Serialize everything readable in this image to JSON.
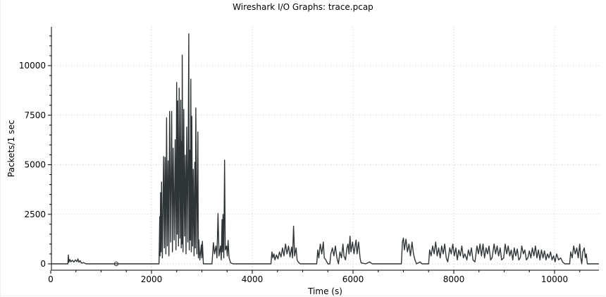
{
  "window_title": "Wireshark I/O Graphs: trace.pcap",
  "chart_data": {
    "type": "line",
    "title": "Wireshark I/O Graphs: trace.pcap",
    "xlabel": "Time (s)",
    "ylabel": "Packets/1 sec",
    "xlim": [
      0,
      10880
    ],
    "ylim": [
      -300,
      11950
    ],
    "xticks": [
      0,
      2000,
      4000,
      6000,
      8000,
      10000
    ],
    "yticks": [
      0,
      2500,
      5000,
      7500,
      10000
    ],
    "grid": true,
    "line_color": "#2f3537",
    "marker": {
      "x": 1300,
      "y": 0,
      "shape": "circle"
    },
    "points": [
      [
        0,
        0
      ],
      [
        340,
        0
      ],
      [
        350,
        450
      ],
      [
        360,
        80
      ],
      [
        380,
        220
      ],
      [
        400,
        100
      ],
      [
        430,
        180
      ],
      [
        460,
        90
      ],
      [
        490,
        200
      ],
      [
        520,
        110
      ],
      [
        540,
        250
      ],
      [
        560,
        80
      ],
      [
        580,
        160
      ],
      [
        610,
        40
      ],
      [
        650,
        60
      ],
      [
        700,
        0
      ],
      [
        2150,
        0
      ],
      [
        2163,
        2380
      ],
      [
        2170,
        400
      ],
      [
        2180,
        3590
      ],
      [
        2190,
        600
      ],
      [
        2200,
        4130
      ],
      [
        2215,
        300
      ],
      [
        2240,
        5410
      ],
      [
        2255,
        800
      ],
      [
        2270,
        5370
      ],
      [
        2285,
        500
      ],
      [
        2300,
        7370
      ],
      [
        2315,
        900
      ],
      [
        2330,
        5200
      ],
      [
        2345,
        400
      ],
      [
        2360,
        7690
      ],
      [
        2380,
        1100
      ],
      [
        2400,
        7690
      ],
      [
        2415,
        600
      ],
      [
        2430,
        5840
      ],
      [
        2450,
        1200
      ],
      [
        2470,
        6260
      ],
      [
        2485,
        700
      ],
      [
        2500,
        9150
      ],
      [
        2510,
        1500
      ],
      [
        2520,
        8220
      ],
      [
        2535,
        900
      ],
      [
        2550,
        8860
      ],
      [
        2565,
        1300
      ],
      [
        2580,
        8260
      ],
      [
        2590,
        800
      ],
      [
        2600,
        6190
      ],
      [
        2605,
        1000
      ],
      [
        2610,
        10530
      ],
      [
        2625,
        600
      ],
      [
        2640,
        7790
      ],
      [
        2655,
        1400
      ],
      [
        2670,
        5480
      ],
      [
        2685,
        500
      ],
      [
        2700,
        6900
      ],
      [
        2720,
        1100
      ],
      [
        2740,
        11600
      ],
      [
        2750,
        700
      ],
      [
        2760,
        5730
      ],
      [
        2770,
        1200
      ],
      [
        2780,
        9320
      ],
      [
        2790,
        600
      ],
      [
        2800,
        7440
      ],
      [
        2815,
        900
      ],
      [
        2830,
        4770
      ],
      [
        2845,
        400
      ],
      [
        2860,
        5120
      ],
      [
        2870,
        800
      ],
      [
        2880,
        7860
      ],
      [
        2900,
        500
      ],
      [
        2920,
        6650
      ],
      [
        2930,
        300
      ],
      [
        2940,
        1210
      ],
      [
        2960,
        200
      ],
      [
        2990,
        960
      ],
      [
        3000,
        300
      ],
      [
        3010,
        1140
      ],
      [
        3030,
        0
      ],
      [
        3200,
        0
      ],
      [
        3230,
        1070
      ],
      [
        3250,
        500
      ],
      [
        3280,
        900
      ],
      [
        3300,
        300
      ],
      [
        3320,
        2540
      ],
      [
        3340,
        400
      ],
      [
        3370,
        900
      ],
      [
        3385,
        200
      ],
      [
        3400,
        2230
      ],
      [
        3410,
        600
      ],
      [
        3420,
        2490
      ],
      [
        3435,
        300
      ],
      [
        3450,
        5230
      ],
      [
        3465,
        700
      ],
      [
        3490,
        900
      ],
      [
        3505,
        400
      ],
      [
        3520,
        1180
      ],
      [
        3540,
        300
      ],
      [
        3570,
        50
      ],
      [
        3620,
        0
      ],
      [
        4370,
        0
      ],
      [
        4390,
        600
      ],
      [
        4410,
        300
      ],
      [
        4430,
        500
      ],
      [
        4450,
        200
      ],
      [
        4480,
        450
      ],
      [
        4510,
        250
      ],
      [
        4540,
        600
      ],
      [
        4570,
        350
      ],
      [
        4600,
        800
      ],
      [
        4630,
        400
      ],
      [
        4660,
        1000
      ],
      [
        4690,
        500
      ],
      [
        4720,
        900
      ],
      [
        4750,
        350
      ],
      [
        4780,
        850
      ],
      [
        4800,
        300
      ],
      [
        4820,
        1900
      ],
      [
        4840,
        400
      ],
      [
        4870,
        800
      ],
      [
        4890,
        200
      ],
      [
        4910,
        100
      ],
      [
        4950,
        0
      ],
      [
        5280,
        0
      ],
      [
        5300,
        700
      ],
      [
        5320,
        300
      ],
      [
        5350,
        1000
      ],
      [
        5380,
        500
      ],
      [
        5410,
        1100
      ],
      [
        5430,
        300
      ],
      [
        5460,
        200
      ],
      [
        5500,
        0
      ],
      [
        5540,
        0
      ],
      [
        5560,
        500
      ],
      [
        5590,
        800
      ],
      [
        5620,
        400
      ],
      [
        5650,
        900
      ],
      [
        5680,
        300
      ],
      [
        5710,
        0
      ],
      [
        5740,
        600
      ],
      [
        5770,
        300
      ],
      [
        5800,
        1000
      ],
      [
        5820,
        400
      ],
      [
        5850,
        200
      ],
      [
        5880,
        800
      ],
      [
        5900,
        1000
      ],
      [
        5920,
        500
      ],
      [
        5940,
        1400
      ],
      [
        5960,
        600
      ],
      [
        5990,
        1100
      ],
      [
        6020,
        500
      ],
      [
        6040,
        900
      ],
      [
        6060,
        1200
      ],
      [
        6080,
        500
      ],
      [
        6110,
        1100
      ],
      [
        6140,
        300
      ],
      [
        6160,
        50
      ],
      [
        6250,
        0
      ],
      [
        6330,
        100
      ],
      [
        6380,
        0
      ],
      [
        6960,
        0
      ],
      [
        6980,
        1100
      ],
      [
        7000,
        1300
      ],
      [
        7020,
        700
      ],
      [
        7050,
        1250
      ],
      [
        7080,
        600
      ],
      [
        7110,
        1000
      ],
      [
        7140,
        400
      ],
      [
        7170,
        1100
      ],
      [
        7200,
        500
      ],
      [
        7230,
        200
      ],
      [
        7260,
        0
      ],
      [
        7330,
        100
      ],
      [
        7370,
        0
      ],
      [
        7500,
        0
      ],
      [
        7520,
        700
      ],
      [
        7550,
        400
      ],
      [
        7580,
        900
      ],
      [
        7610,
        500
      ],
      [
        7640,
        1100
      ],
      [
        7670,
        400
      ],
      [
        7700,
        800
      ],
      [
        7730,
        300
      ],
      [
        7760,
        900
      ],
      [
        7790,
        500
      ],
      [
        7820,
        1000
      ],
      [
        7850,
        300
      ],
      [
        7880,
        100
      ],
      [
        7920,
        800
      ],
      [
        7950,
        500
      ],
      [
        7980,
        1000
      ],
      [
        8010,
        400
      ],
      [
        8040,
        800
      ],
      [
        8070,
        200
      ],
      [
        8100,
        700
      ],
      [
        8130,
        400
      ],
      [
        8160,
        900
      ],
      [
        8190,
        300
      ],
      [
        8220,
        500
      ],
      [
        8260,
        200
      ],
      [
        8290,
        700
      ],
      [
        8320,
        400
      ],
      [
        8350,
        800
      ],
      [
        8380,
        200
      ],
      [
        8420,
        100
      ],
      [
        8460,
        900
      ],
      [
        8490,
        500
      ],
      [
        8520,
        1000
      ],
      [
        8550,
        400
      ],
      [
        8580,
        1000
      ],
      [
        8610,
        300
      ],
      [
        8640,
        800
      ],
      [
        8670,
        500
      ],
      [
        8700,
        900
      ],
      [
        8730,
        200
      ],
      [
        8760,
        300
      ],
      [
        8800,
        1000
      ],
      [
        8830,
        500
      ],
      [
        8860,
        900
      ],
      [
        8890,
        400
      ],
      [
        8920,
        800
      ],
      [
        8950,
        200
      ],
      [
        8990,
        300
      ],
      [
        9020,
        1000
      ],
      [
        9050,
        500
      ],
      [
        9080,
        900
      ],
      [
        9110,
        400
      ],
      [
        9140,
        700
      ],
      [
        9170,
        200
      ],
      [
        9200,
        800
      ],
      [
        9230,
        400
      ],
      [
        9260,
        750
      ],
      [
        9290,
        200
      ],
      [
        9320,
        300
      ],
      [
        9350,
        900
      ],
      [
        9380,
        500
      ],
      [
        9410,
        700
      ],
      [
        9440,
        200
      ],
      [
        9470,
        300
      ],
      [
        9500,
        650
      ],
      [
        9530,
        300
      ],
      [
        9560,
        800
      ],
      [
        9590,
        400
      ],
      [
        9620,
        900
      ],
      [
        9650,
        300
      ],
      [
        9680,
        700
      ],
      [
        9710,
        200
      ],
      [
        9740,
        700
      ],
      [
        9770,
        300
      ],
      [
        9800,
        650
      ],
      [
        9830,
        200
      ],
      [
        9860,
        500
      ],
      [
        9890,
        300
      ],
      [
        9920,
        600
      ],
      [
        9950,
        200
      ],
      [
        9980,
        400
      ],
      [
        10010,
        100
      ],
      [
        10040,
        500
      ],
      [
        10080,
        200
      ],
      [
        10120,
        300
      ],
      [
        10160,
        100
      ],
      [
        10200,
        0
      ],
      [
        10300,
        0
      ],
      [
        10320,
        600
      ],
      [
        10350,
        300
      ],
      [
        10380,
        900
      ],
      [
        10410,
        500
      ],
      [
        10440,
        800
      ],
      [
        10470,
        300
      ],
      [
        10500,
        1000
      ],
      [
        10520,
        300
      ],
      [
        10540,
        0
      ],
      [
        10560,
        600
      ],
      [
        10590,
        800
      ],
      [
        10610,
        300
      ],
      [
        10630,
        500
      ],
      [
        10650,
        0
      ],
      [
        10880,
        0
      ]
    ]
  }
}
